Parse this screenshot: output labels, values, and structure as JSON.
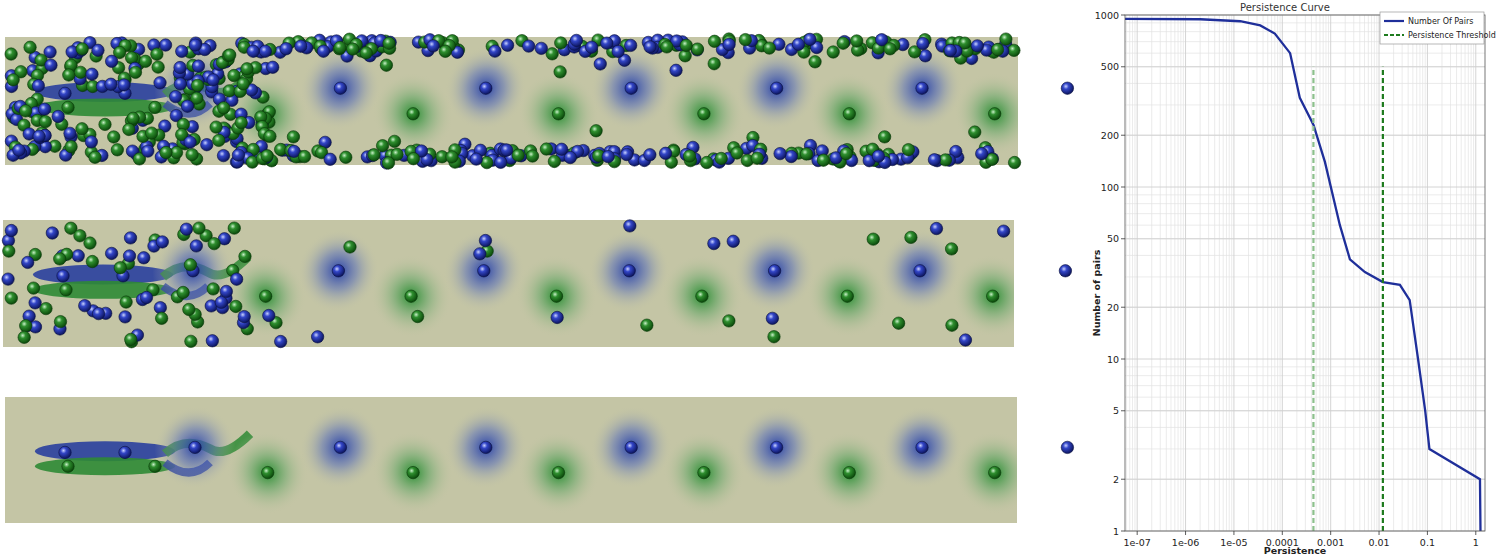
{
  "chart_data": {
    "type": "line",
    "title": "Persistence Curve",
    "x_label": "Persistence",
    "y_label": "Number of pairs",
    "log": true,
    "grid": true,
    "legend": "top-right",
    "xlim": [
      5.6e-08,
      1.55
    ],
    "ylim": [
      1,
      1000
    ],
    "xticks": [
      {
        "value": 1e-07,
        "label": "1e-07"
      },
      {
        "value": 1e-06,
        "label": "1e-06"
      },
      {
        "value": 1e-05,
        "label": "1e-05"
      },
      0.0001,
      0.001,
      0.01,
      0.1,
      1
    ],
    "yticks": [
      1,
      2,
      5,
      10,
      20,
      50,
      100,
      200,
      500,
      1000
    ],
    "series": [
      {
        "name": "Number Of Pairs",
        "color": "#1f2f9a",
        "line_style": "solid",
        "x": [
          5.6e-08,
          2e-06,
          1.35e-05,
          3.5e-05,
          7e-05,
          0.000145,
          0.00023,
          0.00044,
          0.00076,
          0.00155,
          0.0025,
          0.0051,
          0.012,
          0.027,
          0.043,
          0.064,
          0.09,
          0.11,
          1.22,
          1.25
        ],
        "values": [
          950,
          945,
          920,
          870,
          780,
          600,
          330,
          230,
          140,
          60,
          38,
          32,
          28,
          27,
          22,
          10,
          5,
          3,
          2,
          1
        ]
      },
      {
        "name": "Persistence Threshold",
        "type": "vline",
        "color": "#1e7b1e",
        "colors": [
          "#8cc08c",
          "#1e7b1e"
        ],
        "line_style": "dashed",
        "x": [
          0.00044,
          0.012
        ],
        "values": [
          500,
          500
        ]
      }
    ]
  }
}
